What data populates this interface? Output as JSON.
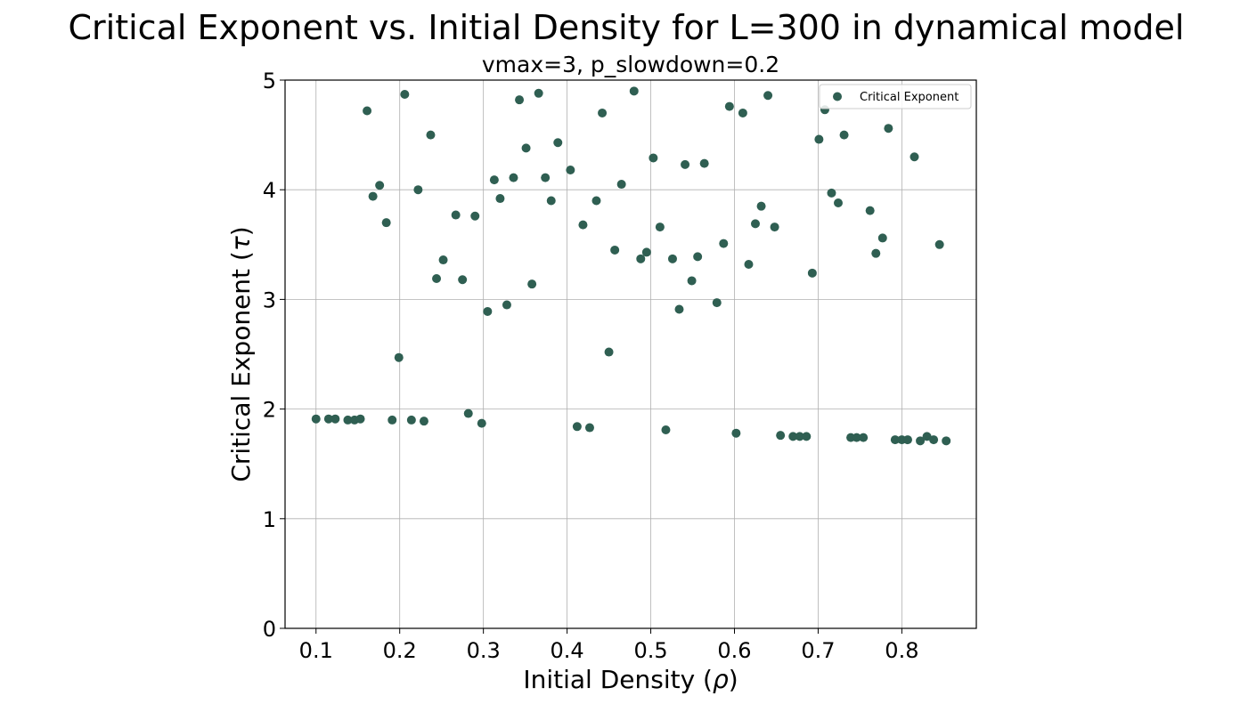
{
  "chart_data": {
    "type": "scatter",
    "title": "Critical Exponent vs. Initial Density for L=300 in dynamical model",
    "subtitle": "vmax=3, p_slowdown=0.2",
    "xlabel_prefix": "Initial Density (",
    "xlabel_symbol": "ρ",
    "xlabel_suffix": ")",
    "ylabel_prefix": "Critical Exponent (",
    "ylabel_symbol": "τ",
    "ylabel_suffix": ")",
    "xlim": [
      0.063,
      0.889
    ],
    "ylim": [
      0,
      5
    ],
    "x_ticks": [
      0.1,
      0.2,
      0.3,
      0.4,
      0.5,
      0.6,
      0.7,
      0.8
    ],
    "x_tick_labels": [
      "0.1",
      "0.2",
      "0.3",
      "0.4",
      "0.5",
      "0.6",
      "0.7",
      "0.8"
    ],
    "y_ticks": [
      0,
      1,
      2,
      3,
      4,
      5
    ],
    "y_tick_labels": [
      "0",
      "1",
      "2",
      "3",
      "4",
      "5"
    ],
    "grid": true,
    "legend_position": "top-right",
    "marker_color": "#2f5f52",
    "series": [
      {
        "name": "Critical Exponent",
        "points": [
          [
            0.1,
            1.91
          ],
          [
            0.115,
            1.91
          ],
          [
            0.123,
            1.91
          ],
          [
            0.138,
            1.9
          ],
          [
            0.146,
            1.9
          ],
          [
            0.153,
            1.91
          ],
          [
            0.161,
            4.72
          ],
          [
            0.168,
            3.94
          ],
          [
            0.176,
            4.04
          ],
          [
            0.184,
            3.7
          ],
          [
            0.191,
            1.9
          ],
          [
            0.199,
            2.47
          ],
          [
            0.206,
            4.87
          ],
          [
            0.214,
            1.9
          ],
          [
            0.222,
            4.0
          ],
          [
            0.229,
            1.89
          ],
          [
            0.237,
            4.5
          ],
          [
            0.244,
            3.19
          ],
          [
            0.252,
            3.36
          ],
          [
            0.267,
            3.77
          ],
          [
            0.275,
            3.18
          ],
          [
            0.282,
            1.96
          ],
          [
            0.29,
            3.76
          ],
          [
            0.298,
            1.87
          ],
          [
            0.305,
            2.89
          ],
          [
            0.313,
            4.09
          ],
          [
            0.32,
            3.92
          ],
          [
            0.328,
            2.95
          ],
          [
            0.336,
            4.11
          ],
          [
            0.343,
            4.82
          ],
          [
            0.351,
            4.38
          ],
          [
            0.358,
            3.14
          ],
          [
            0.366,
            4.88
          ],
          [
            0.374,
            4.11
          ],
          [
            0.381,
            3.9
          ],
          [
            0.389,
            4.43
          ],
          [
            0.404,
            4.18
          ],
          [
            0.412,
            1.84
          ],
          [
            0.419,
            3.68
          ],
          [
            0.427,
            1.83
          ],
          [
            0.435,
            3.9
          ],
          [
            0.442,
            4.7
          ],
          [
            0.45,
            2.52
          ],
          [
            0.457,
            3.45
          ],
          [
            0.465,
            4.05
          ],
          [
            0.48,
            4.9
          ],
          [
            0.488,
            3.37
          ],
          [
            0.495,
            3.43
          ],
          [
            0.503,
            4.29
          ],
          [
            0.511,
            3.66
          ],
          [
            0.518,
            1.81
          ],
          [
            0.526,
            3.37
          ],
          [
            0.534,
            2.91
          ],
          [
            0.541,
            4.23
          ],
          [
            0.549,
            3.17
          ],
          [
            0.556,
            3.39
          ],
          [
            0.564,
            4.24
          ],
          [
            0.579,
            2.97
          ],
          [
            0.587,
            3.51
          ],
          [
            0.594,
            4.76
          ],
          [
            0.602,
            1.78
          ],
          [
            0.61,
            4.7
          ],
          [
            0.617,
            3.32
          ],
          [
            0.625,
            3.69
          ],
          [
            0.632,
            3.85
          ],
          [
            0.64,
            4.86
          ],
          [
            0.648,
            3.66
          ],
          [
            0.655,
            1.76
          ],
          [
            0.67,
            1.75
          ],
          [
            0.678,
            1.75
          ],
          [
            0.686,
            1.75
          ],
          [
            0.693,
            3.24
          ],
          [
            0.701,
            4.46
          ],
          [
            0.708,
            4.73
          ],
          [
            0.716,
            3.97
          ],
          [
            0.724,
            3.88
          ],
          [
            0.731,
            4.5
          ],
          [
            0.739,
            1.74
          ],
          [
            0.746,
            1.74
          ],
          [
            0.754,
            1.74
          ],
          [
            0.762,
            3.81
          ],
          [
            0.769,
            3.42
          ],
          [
            0.777,
            3.56
          ],
          [
            0.784,
            4.56
          ],
          [
            0.792,
            1.72
          ],
          [
            0.8,
            1.72
          ],
          [
            0.807,
            1.72
          ],
          [
            0.815,
            4.3
          ],
          [
            0.822,
            1.71
          ],
          [
            0.83,
            1.75
          ],
          [
            0.838,
            1.72
          ],
          [
            0.845,
            3.5
          ],
          [
            0.853,
            1.71
          ]
        ]
      }
    ]
  }
}
